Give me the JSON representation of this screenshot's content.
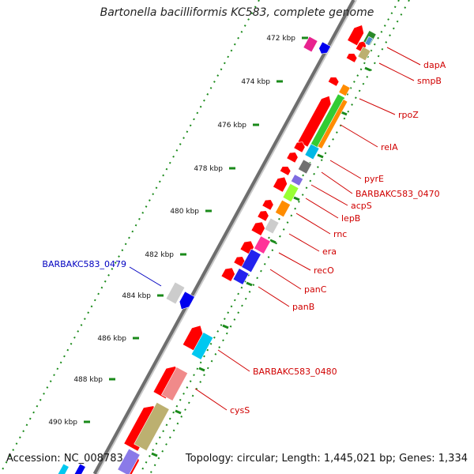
{
  "title": "Bartonella bacilliformis KC583, complete genome",
  "accession": "Accession: NC_008783",
  "summary": "Topology: circular; Length: 1,445,021 bp; Genes: 1,334",
  "ruler": [
    "472 kbp",
    "474 kbp",
    "476 kbp",
    "478 kbp",
    "480 kbp",
    "482 kbp",
    "484 kbp",
    "486 kbp",
    "488 kbp",
    "490 kbp"
  ],
  "gene_labels": [
    {
      "text": "dapA",
      "color": "#d00000"
    },
    {
      "text": "smpB",
      "color": "#d00000"
    },
    {
      "text": "rpoZ",
      "color": "#d00000"
    },
    {
      "text": "relA",
      "color": "#d00000"
    },
    {
      "text": "pyrE",
      "color": "#d00000"
    },
    {
      "text": "BARBAKC583_0470",
      "color": "#d00000"
    },
    {
      "text": "acpS",
      "color": "#d00000"
    },
    {
      "text": "lepB",
      "color": "#d00000"
    },
    {
      "text": "rnc",
      "color": "#d00000"
    },
    {
      "text": "era",
      "color": "#d00000"
    },
    {
      "text": "recO",
      "color": "#d00000"
    },
    {
      "text": "panC",
      "color": "#d00000"
    },
    {
      "text": "panB",
      "color": "#d00000"
    },
    {
      "text": "BARBAKC583_0480",
      "color": "#d00000"
    },
    {
      "text": "cysS",
      "color": "#d00000"
    },
    {
      "text": "BARBAKC583_0479",
      "color": "#0000c0"
    }
  ],
  "colors": {
    "cds": "#ff0000",
    "backbone": "#8a8a8a",
    "ruler_dot": "#1a8a1a",
    "label_red": "#d00000",
    "label_blue": "#0000c0"
  }
}
